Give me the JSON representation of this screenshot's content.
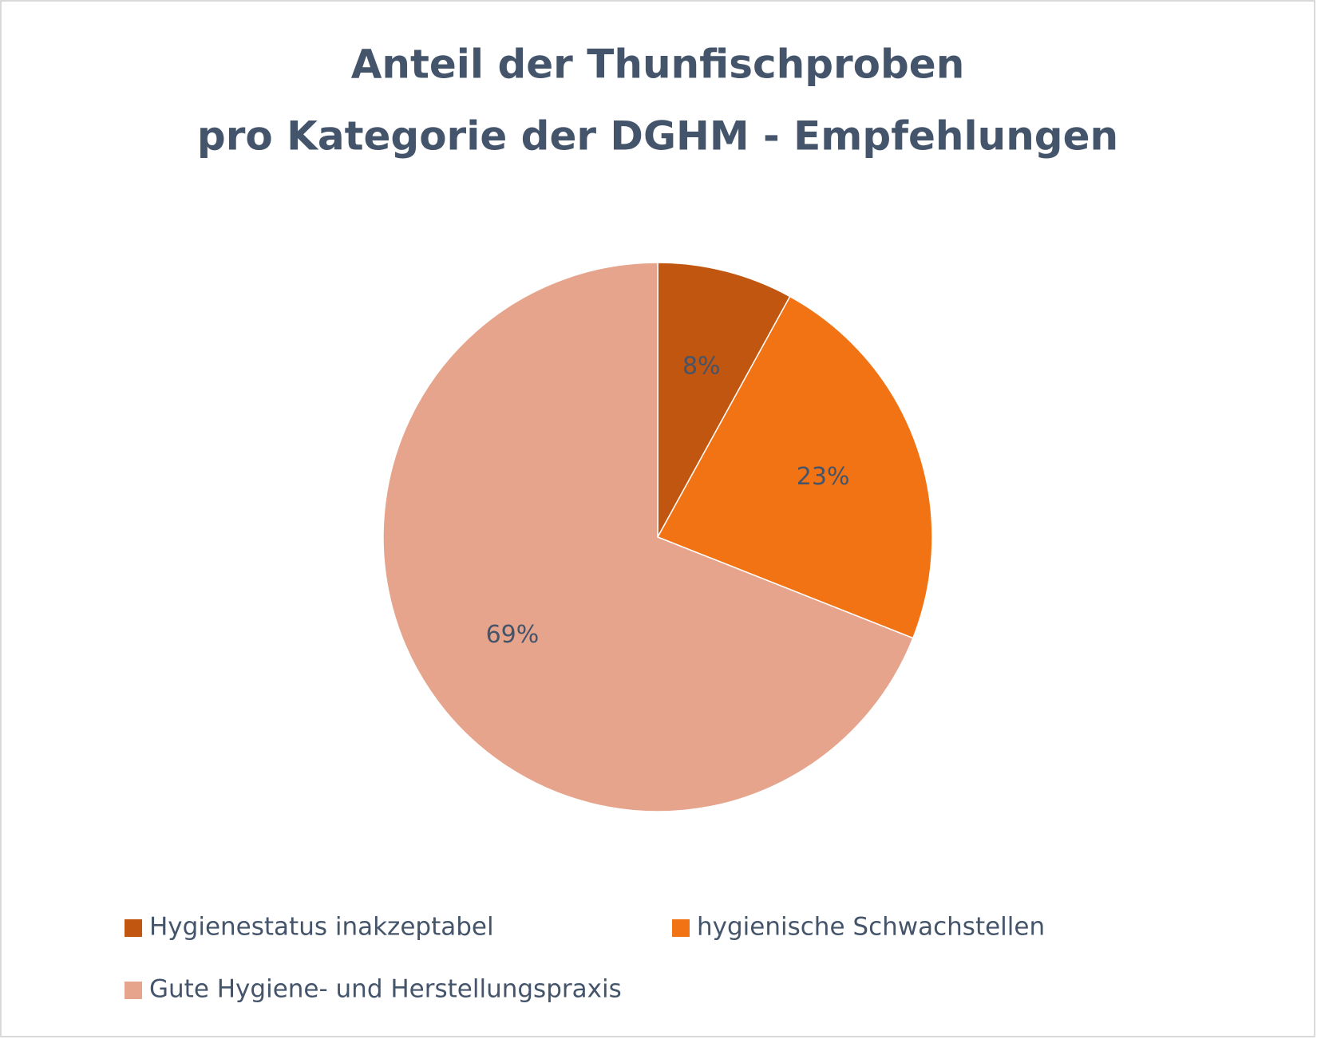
{
  "chart_data": {
    "type": "pie",
    "title": [
      "Anteil der Thunfischproben",
      "pro Kategorie der DGHM - Empfehlungen"
    ],
    "categories": [
      "Hygienestatus inakzeptabel",
      "hygienische Schwachstellen",
      "Gute Hygiene- und Herstellungspraxis"
    ],
    "values": [
      8,
      23,
      69
    ],
    "value_labels": [
      "8%",
      "23%",
      "69%"
    ],
    "colors": [
      "#c0560f",
      "#f27314",
      "#e6a48c"
    ],
    "legend": "bottom"
  }
}
